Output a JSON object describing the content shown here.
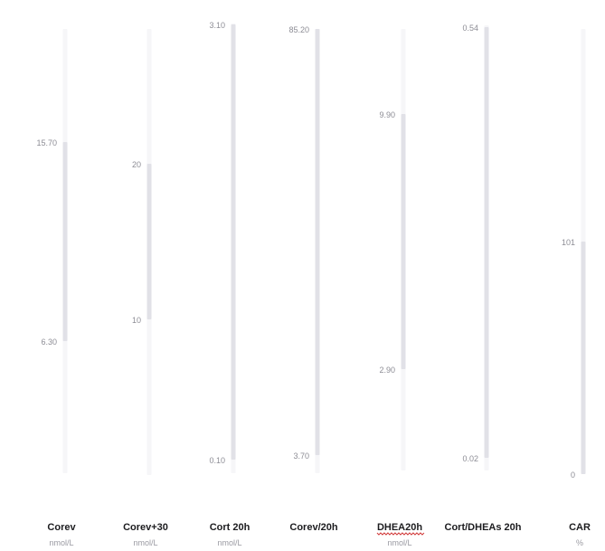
{
  "chart_data": {
    "type": "range",
    "grid": false,
    "legend": "none",
    "colors": {
      "track": "#f6f6f8",
      "range": "#e1e1e7",
      "title": "#1c1c1f",
      "tick": "#8d8d95"
    },
    "columns": [
      {
        "name": "Corev",
        "unit": "nmol/L",
        "range": [
          6.3,
          15.7
        ],
        "labels": [
          "15.70",
          "6.30"
        ]
      },
      {
        "name": "Corev+30",
        "unit": "nmol/L",
        "range": [
          10,
          20
        ],
        "labels": [
          "20",
          "10"
        ]
      },
      {
        "name": "Cort 20h",
        "unit": "nmol/L",
        "range": [
          0.1,
          3.1
        ],
        "labels": [
          "3.10",
          "0.10"
        ]
      },
      {
        "name": "Corev/20h",
        "unit": "",
        "range": [
          3.7,
          85.2
        ],
        "labels": [
          "85.20",
          "3.70"
        ]
      },
      {
        "name": "DHEA20h",
        "unit": "nmol/L",
        "range": [
          2.9,
          9.9
        ],
        "labels": [
          "9.90",
          "2.90"
        ],
        "spellcheck": true
      },
      {
        "name": "Cort/DHEAs 20h",
        "unit": "",
        "range": [
          0.02,
          0.54
        ],
        "labels": [
          "0.54",
          "0.02"
        ]
      },
      {
        "name": "CAR",
        "unit": "%",
        "range": [
          0,
          101
        ],
        "labels": [
          "101",
          "0"
        ]
      }
    ]
  }
}
